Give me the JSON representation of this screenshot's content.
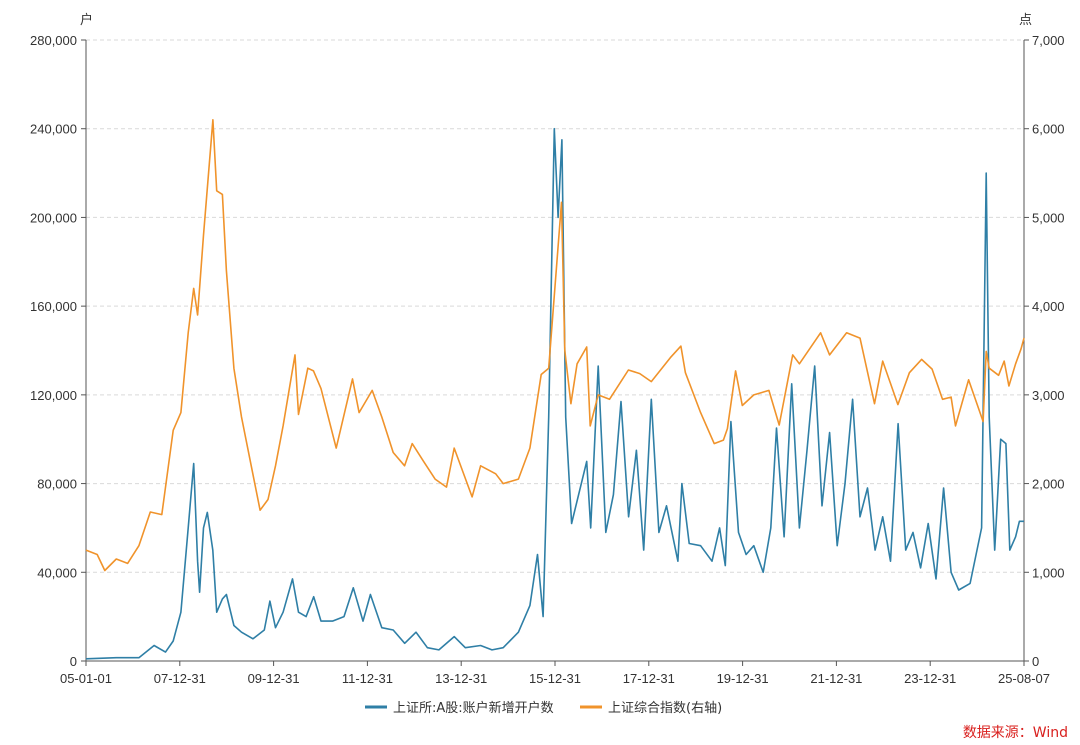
{
  "chart_data": {
    "type": "line",
    "left_unit": "户",
    "right_unit": "点",
    "x_ticks": [
      "05-01-01",
      "07-12-31",
      "09-12-31",
      "11-12-31",
      "13-12-31",
      "15-12-31",
      "17-12-31",
      "19-12-31",
      "21-12-31",
      "23-12-31",
      "25-08-07"
    ],
    "x_range": [
      "2005-01-01",
      "2025-08-07"
    ],
    "y_left": {
      "min": 0,
      "max": 280000,
      "ticks": [
        "0",
        "40,000",
        "80,000",
        "120,000",
        "160,000",
        "200,000",
        "240,000",
        "280,000"
      ]
    },
    "y_right": {
      "min": 0,
      "max": 7000,
      "ticks": [
        "0",
        "1,000",
        "2,000",
        "3,000",
        "4,000",
        "5,000",
        "6,000",
        "7,000"
      ]
    },
    "grid": "horizontal-dashed",
    "legend_position": "bottom-center",
    "series": [
      {
        "name": "上证所:A股:账户新增开户数",
        "axis": "left",
        "color": "#2f7fa6",
        "points": [
          [
            "2005-01-01",
            1000
          ],
          [
            "2005-09-01",
            1500
          ],
          [
            "2006-03-01",
            1500
          ],
          [
            "2006-07-01",
            7000
          ],
          [
            "2006-10-01",
            4000
          ],
          [
            "2006-12-01",
            9000
          ],
          [
            "2007-02-01",
            22000
          ],
          [
            "2007-04-01",
            60000
          ],
          [
            "2007-05-15",
            89000
          ],
          [
            "2007-06-15",
            45000
          ],
          [
            "2007-07-01",
            31000
          ],
          [
            "2007-08-01",
            60000
          ],
          [
            "2007-09-01",
            67000
          ],
          [
            "2007-10-15",
            50000
          ],
          [
            "2007-11-15",
            22000
          ],
          [
            "2007-12-31",
            28000
          ],
          [
            "2008-02-01",
            30000
          ],
          [
            "2008-04-01",
            16000
          ],
          [
            "2008-06-01",
            13000
          ],
          [
            "2008-09-01",
            10000
          ],
          [
            "2008-12-01",
            14000
          ],
          [
            "2009-01-15",
            27000
          ],
          [
            "2009-03-01",
            15000
          ],
          [
            "2009-05-01",
            22000
          ],
          [
            "2009-07-15",
            37000
          ],
          [
            "2009-09-01",
            22000
          ],
          [
            "2009-11-01",
            20000
          ],
          [
            "2010-01-01",
            29000
          ],
          [
            "2010-03-01",
            18000
          ],
          [
            "2010-06-01",
            18000
          ],
          [
            "2010-09-01",
            20000
          ],
          [
            "2010-11-15",
            33000
          ],
          [
            "2011-02-01",
            18000
          ],
          [
            "2011-04-01",
            30000
          ],
          [
            "2011-07-01",
            15000
          ],
          [
            "2011-10-01",
            14000
          ],
          [
            "2012-01-01",
            8000
          ],
          [
            "2012-04-01",
            13000
          ],
          [
            "2012-07-01",
            6000
          ],
          [
            "2012-10-01",
            5000
          ],
          [
            "2013-02-01",
            11000
          ],
          [
            "2013-05-01",
            6000
          ],
          [
            "2013-09-01",
            7000
          ],
          [
            "2013-12-01",
            5000
          ],
          [
            "2014-03-01",
            6000
          ],
          [
            "2014-07-01",
            13000
          ],
          [
            "2014-10-01",
            25000
          ],
          [
            "2014-12-01",
            48000
          ],
          [
            "2015-01-15",
            20000
          ],
          [
            "2015-03-01",
            110000
          ],
          [
            "2015-04-15",
            240000
          ],
          [
            "2015-05-15",
            200000
          ],
          [
            "2015-06-15",
            235000
          ],
          [
            "2015-07-15",
            110000
          ],
          [
            "2015-09-01",
            62000
          ],
          [
            "2015-12-31",
            90000
          ],
          [
            "2016-02-01",
            60000
          ],
          [
            "2016-04-01",
            133000
          ],
          [
            "2016-06-01",
            58000
          ],
          [
            "2016-08-01",
            75000
          ],
          [
            "2016-10-01",
            117000
          ],
          [
            "2016-12-01",
            65000
          ],
          [
            "2017-02-01",
            95000
          ],
          [
            "2017-04-01",
            50000
          ],
          [
            "2017-06-01",
            118000
          ],
          [
            "2017-08-01",
            58000
          ],
          [
            "2017-10-01",
            70000
          ],
          [
            "2017-12-31",
            45000
          ],
          [
            "2018-02-01",
            80000
          ],
          [
            "2018-04-01",
            53000
          ],
          [
            "2018-07-01",
            52000
          ],
          [
            "2018-10-01",
            45000
          ],
          [
            "2018-12-01",
            60000
          ],
          [
            "2019-01-15",
            43000
          ],
          [
            "2019-03-01",
            108000
          ],
          [
            "2019-05-01",
            58000
          ],
          [
            "2019-07-01",
            48000
          ],
          [
            "2019-09-01",
            52000
          ],
          [
            "2019-11-15",
            40000
          ],
          [
            "2020-01-15",
            60000
          ],
          [
            "2020-03-01",
            105000
          ],
          [
            "2020-05-01",
            56000
          ],
          [
            "2020-07-01",
            125000
          ],
          [
            "2020-09-01",
            60000
          ],
          [
            "2020-11-01",
            95000
          ],
          [
            "2021-01-01",
            133000
          ],
          [
            "2021-03-01",
            70000
          ],
          [
            "2021-05-01",
            103000
          ],
          [
            "2021-07-01",
            52000
          ],
          [
            "2021-09-01",
            80000
          ],
          [
            "2021-11-01",
            118000
          ],
          [
            "2021-12-31",
            65000
          ],
          [
            "2022-03-01",
            78000
          ],
          [
            "2022-05-01",
            50000
          ],
          [
            "2022-07-01",
            65000
          ],
          [
            "2022-09-01",
            45000
          ],
          [
            "2022-11-01",
            107000
          ],
          [
            "2023-01-01",
            50000
          ],
          [
            "2023-03-01",
            58000
          ],
          [
            "2023-05-01",
            42000
          ],
          [
            "2023-07-01",
            62000
          ],
          [
            "2023-09-01",
            37000
          ],
          [
            "2023-11-01",
            78000
          ],
          [
            "2023-12-31",
            40000
          ],
          [
            "2024-03-01",
            32000
          ],
          [
            "2024-06-01",
            35000
          ],
          [
            "2024-09-01",
            60000
          ],
          [
            "2024-10-08",
            220000
          ],
          [
            "2024-11-01",
            110000
          ],
          [
            "2024-12-15",
            50000
          ],
          [
            "2025-02-01",
            100000
          ],
          [
            "2025-03-15",
            98000
          ],
          [
            "2025-04-15",
            50000
          ],
          [
            "2025-06-01",
            56000
          ],
          [
            "2025-07-01",
            63000
          ],
          [
            "2025-08-07",
            63000
          ]
        ]
      },
      {
        "name": "上证综合指数(右轴)",
        "axis": "right",
        "color": "#f0932b",
        "points": [
          [
            "2005-01-01",
            1250
          ],
          [
            "2005-04-01",
            1200
          ],
          [
            "2005-06-01",
            1020
          ],
          [
            "2005-09-01",
            1150
          ],
          [
            "2005-12-01",
            1100
          ],
          [
            "2006-03-01",
            1300
          ],
          [
            "2006-06-01",
            1680
          ],
          [
            "2006-09-01",
            1650
          ],
          [
            "2006-12-01",
            2600
          ],
          [
            "2007-02-01",
            2800
          ],
          [
            "2007-04-01",
            3700
          ],
          [
            "2007-05-15",
            4200
          ],
          [
            "2007-06-15",
            3900
          ],
          [
            "2007-08-01",
            4800
          ],
          [
            "2007-10-16",
            6100
          ],
          [
            "2007-11-15",
            5300
          ],
          [
            "2007-12-31",
            5260
          ],
          [
            "2008-02-01",
            4400
          ],
          [
            "2008-04-01",
            3300
          ],
          [
            "2008-06-01",
            2750
          ],
          [
            "2008-09-01",
            2100
          ],
          [
            "2008-10-28",
            1700
          ],
          [
            "2008-12-31",
            1820
          ],
          [
            "2009-03-01",
            2200
          ],
          [
            "2009-05-01",
            2650
          ],
          [
            "2009-08-04",
            3450
          ],
          [
            "2009-09-01",
            2780
          ],
          [
            "2009-11-15",
            3300
          ],
          [
            "2009-12-31",
            3270
          ],
          [
            "2010-03-01",
            3070
          ],
          [
            "2010-07-01",
            2400
          ],
          [
            "2010-11-08",
            3180
          ],
          [
            "2010-12-31",
            2800
          ],
          [
            "2011-04-15",
            3050
          ],
          [
            "2011-07-01",
            2750
          ],
          [
            "2011-10-01",
            2350
          ],
          [
            "2011-12-31",
            2200
          ],
          [
            "2012-03-01",
            2450
          ],
          [
            "2012-06-01",
            2250
          ],
          [
            "2012-09-01",
            2050
          ],
          [
            "2012-12-01",
            1960
          ],
          [
            "2013-02-01",
            2400
          ],
          [
            "2013-06-25",
            1850
          ],
          [
            "2013-09-01",
            2200
          ],
          [
            "2013-12-31",
            2110
          ],
          [
            "2014-03-01",
            2000
          ],
          [
            "2014-07-01",
            2050
          ],
          [
            "2014-10-01",
            2400
          ],
          [
            "2014-12-31",
            3230
          ],
          [
            "2015-03-01",
            3300
          ],
          [
            "2015-06-12",
            5170
          ],
          [
            "2015-07-08",
            3500
          ],
          [
            "2015-08-26",
            2900
          ],
          [
            "2015-10-15",
            3350
          ],
          [
            "2015-12-31",
            3540
          ],
          [
            "2016-01-28",
            2650
          ],
          [
            "2016-04-01",
            3000
          ],
          [
            "2016-07-01",
            2950
          ],
          [
            "2016-11-29",
            3280
          ],
          [
            "2017-03-01",
            3240
          ],
          [
            "2017-06-01",
            3150
          ],
          [
            "2017-11-01",
            3420
          ],
          [
            "2018-01-24",
            3550
          ],
          [
            "2018-03-01",
            3250
          ],
          [
            "2018-07-01",
            2800
          ],
          [
            "2018-10-18",
            2450
          ],
          [
            "2018-12-31",
            2490
          ],
          [
            "2019-02-01",
            2620
          ],
          [
            "2019-04-08",
            3270
          ],
          [
            "2019-06-01",
            2880
          ],
          [
            "2019-09-01",
            3000
          ],
          [
            "2019-12-31",
            3050
          ],
          [
            "2020-03-23",
            2660
          ],
          [
            "2020-07-09",
            3450
          ],
          [
            "2020-09-01",
            3350
          ],
          [
            "2021-02-18",
            3700
          ],
          [
            "2021-05-01",
            3450
          ],
          [
            "2021-09-14",
            3700
          ],
          [
            "2021-12-31",
            3640
          ],
          [
            "2022-04-26",
            2900
          ],
          [
            "2022-07-01",
            3380
          ],
          [
            "2022-10-31",
            2890
          ],
          [
            "2023-01-31",
            3250
          ],
          [
            "2023-05-09",
            3400
          ],
          [
            "2023-08-01",
            3290
          ],
          [
            "2023-10-23",
            2950
          ],
          [
            "2023-12-31",
            2975
          ],
          [
            "2024-02-05",
            2650
          ],
          [
            "2024-05-20",
            3170
          ],
          [
            "2024-09-13",
            2700
          ],
          [
            "2024-10-08",
            3490
          ],
          [
            "2024-11-01",
            3300
          ],
          [
            "2025-01-15",
            3220
          ],
          [
            "2025-03-01",
            3380
          ],
          [
            "2025-04-08",
            3100
          ],
          [
            "2025-06-01",
            3350
          ],
          [
            "2025-07-15",
            3520
          ],
          [
            "2025-08-07",
            3640
          ]
        ]
      }
    ]
  },
  "source": "数据来源：Wind"
}
